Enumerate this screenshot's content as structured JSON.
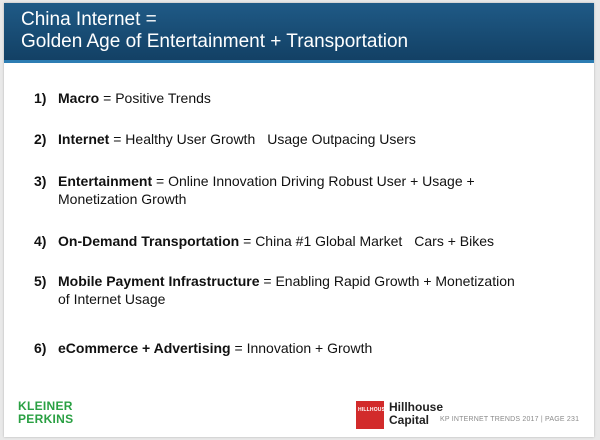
{
  "header": {
    "title_line1": "China Internet =",
    "title_line2": "Golden Age of Entertainment + Transportation"
  },
  "items": [
    {
      "num": "1)",
      "head": "Macro",
      "rest": " = Positive Trends"
    },
    {
      "num": "2)",
      "head": "Internet",
      "rest": " =  Healthy User Growth",
      "extra": "Usage Outpacing Users"
    },
    {
      "num": "3)",
      "head": "Entertainment",
      "rest": " = Online Innovation Driving Robust User + Usage +",
      "cont": "Monetization Growth"
    },
    {
      "num": "4)",
      "head": "On-Demand Transportation",
      "rest": " = China #1 Global Market",
      "extra": "Cars + Bikes"
    },
    {
      "num": "5)",
      "head": "Mobile Payment Infrastructure",
      "rest": " = Enabling Rapid Growth + Monetization",
      "cont": "of Internet Usage"
    },
    {
      "num": "6)",
      "head": "eCommerce + Advertising",
      "rest": " = Innovation + Growth"
    }
  ],
  "footer": {
    "kp_line1": "KLEINER",
    "kp_line2": "PERKINS",
    "hh_logo_text": "HILLHOUSE",
    "hh_line1": "Hillhouse",
    "hh_line2": "Capital",
    "source_text": "KP INTERNET TRENDS 2017  |  PAGE 231"
  },
  "colors": {
    "header_bg": "#1a4f78",
    "kp_green": "#2aa043",
    "hh_red": "#d22b2b"
  }
}
